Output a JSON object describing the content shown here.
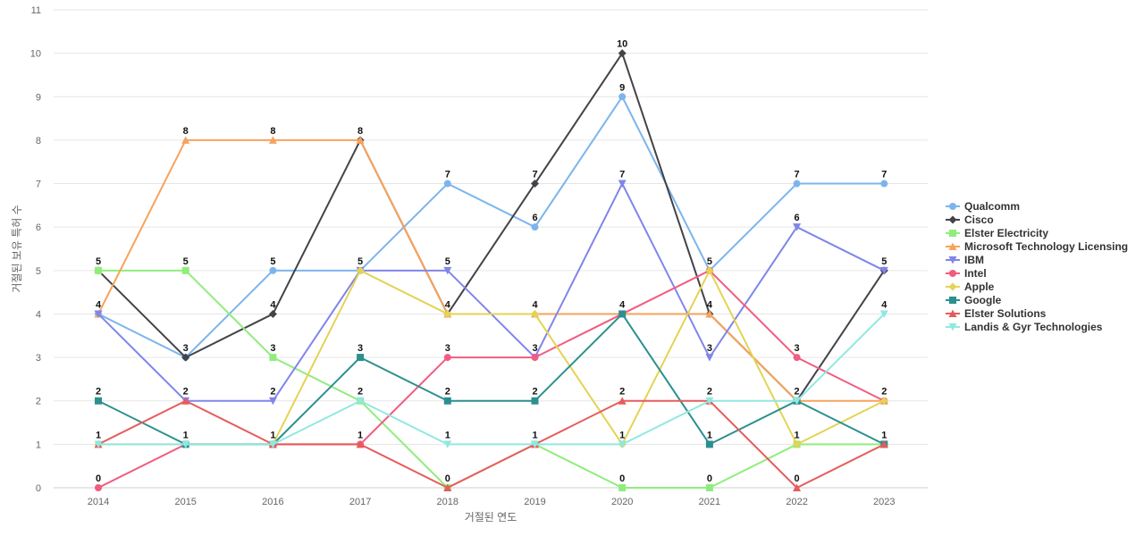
{
  "chart_data": {
    "type": "line",
    "xlabel": "거절된 연도",
    "ylabel": "거절된 보유 특허 수",
    "x": [
      "2014",
      "2015",
      "2016",
      "2017",
      "2018",
      "2019",
      "2020",
      "2021",
      "2022",
      "2023"
    ],
    "ylim": [
      0,
      11
    ],
    "yticks": [
      0,
      1,
      2,
      3,
      4,
      5,
      6,
      7,
      8,
      9,
      10,
      11
    ],
    "grid": true,
    "legend_position": "right",
    "data_labels": true,
    "series": [
      {
        "name": "Qualcomm",
        "color": "#7cb5ec",
        "marker": "circle",
        "values": [
          4,
          3,
          5,
          5,
          7,
          6,
          9,
          5,
          7,
          7
        ]
      },
      {
        "name": "Cisco",
        "color": "#434348",
        "marker": "diamond",
        "values": [
          5,
          3,
          4,
          8,
          4,
          7,
          10,
          4,
          2,
          5
        ]
      },
      {
        "name": "Elster Electricity",
        "color": "#90ed7d",
        "marker": "square",
        "values": [
          5,
          5,
          3,
          2,
          0,
          1,
          0,
          0,
          1,
          1
        ]
      },
      {
        "name": "Microsoft Technology Licensing",
        "color": "#f7a35c",
        "marker": "triangle",
        "values": [
          4,
          8,
          8,
          8,
          4,
          4,
          4,
          4,
          2,
          2
        ]
      },
      {
        "name": "IBM",
        "color": "#8085e9",
        "marker": "triangle-down",
        "values": [
          4,
          2,
          2,
          5,
          5,
          3,
          7,
          3,
          6,
          5
        ]
      },
      {
        "name": "Intel",
        "color": "#f15c80",
        "marker": "circle",
        "values": [
          0,
          1,
          1,
          1,
          3,
          3,
          4,
          5,
          3,
          2
        ]
      },
      {
        "name": "Apple",
        "color": "#e4d354",
        "marker": "diamond",
        "values": [
          1,
          1,
          1,
          5,
          4,
          4,
          1,
          5,
          1,
          2
        ]
      },
      {
        "name": "Google",
        "color": "#2b908f",
        "marker": "square",
        "values": [
          2,
          1,
          1,
          3,
          2,
          2,
          4,
          1,
          2,
          1
        ]
      },
      {
        "name": "Elster Solutions",
        "color": "#e75b5b",
        "marker": "triangle",
        "values": [
          1,
          2,
          1,
          1,
          0,
          1,
          2,
          2,
          0,
          1
        ]
      },
      {
        "name": "Landis & Gyr Technologies",
        "color": "#91e8e1",
        "marker": "triangle-down",
        "values": [
          1,
          1,
          1,
          2,
          1,
          1,
          1,
          2,
          2,
          4
        ]
      }
    ],
    "point_labels": [
      {
        "x": "2014",
        "text": "5",
        "value": 5
      },
      {
        "x": "2014",
        "text": "4",
        "value": 4
      },
      {
        "x": "2014",
        "text": "2",
        "value": 2
      },
      {
        "x": "2014",
        "text": "1",
        "value": 1
      },
      {
        "x": "2014",
        "text": "0",
        "value": 0
      },
      {
        "x": "2015",
        "text": "8",
        "value": 8
      },
      {
        "x": "2015",
        "text": "5",
        "value": 5
      },
      {
        "x": "2015",
        "text": "3",
        "value": 3
      },
      {
        "x": "2015",
        "text": "2",
        "value": 2
      },
      {
        "x": "2015",
        "text": "1",
        "value": 1
      },
      {
        "x": "2016",
        "text": "8",
        "value": 8
      },
      {
        "x": "2016",
        "text": "5",
        "value": 5
      },
      {
        "x": "2016",
        "text": "4",
        "value": 4
      },
      {
        "x": "2016",
        "text": "3",
        "value": 3
      },
      {
        "x": "2016",
        "text": "2",
        "value": 2
      },
      {
        "x": "2016",
        "text": "1",
        "value": 1
      },
      {
        "x": "2017",
        "text": "8",
        "value": 8
      },
      {
        "x": "2017",
        "text": "5",
        "value": 5
      },
      {
        "x": "2017",
        "text": "3",
        "value": 3
      },
      {
        "x": "2017",
        "text": "2",
        "value": 2
      },
      {
        "x": "2017",
        "text": "1",
        "value": 1
      },
      {
        "x": "2018",
        "text": "7",
        "value": 7
      },
      {
        "x": "2018",
        "text": "5",
        "value": 5
      },
      {
        "x": "2018",
        "text": "4",
        "value": 4
      },
      {
        "x": "2018",
        "text": "3",
        "value": 3
      },
      {
        "x": "2018",
        "text": "2",
        "value": 2
      },
      {
        "x": "2018",
        "text": "1",
        "value": 1
      },
      {
        "x": "2018",
        "text": "0",
        "value": 0
      },
      {
        "x": "2019",
        "text": "7",
        "value": 7
      },
      {
        "x": "2019",
        "text": "6",
        "value": 6
      },
      {
        "x": "2019",
        "text": "4",
        "value": 4
      },
      {
        "x": "2019",
        "text": "3",
        "value": 3
      },
      {
        "x": "2019",
        "text": "2",
        "value": 2
      },
      {
        "x": "2019",
        "text": "1",
        "value": 1
      },
      {
        "x": "2020",
        "text": "10",
        "value": 10
      },
      {
        "x": "2020",
        "text": "9",
        "value": 9
      },
      {
        "x": "2020",
        "text": "7",
        "value": 7
      },
      {
        "x": "2020",
        "text": "4",
        "value": 4
      },
      {
        "x": "2020",
        "text": "2",
        "value": 2
      },
      {
        "x": "2020",
        "text": "1",
        "value": 1
      },
      {
        "x": "2020",
        "text": "0",
        "value": 0
      },
      {
        "x": "2021",
        "text": "5",
        "value": 5
      },
      {
        "x": "2021",
        "text": "4",
        "value": 4
      },
      {
        "x": "2021",
        "text": "3",
        "value": 3
      },
      {
        "x": "2021",
        "text": "2",
        "value": 2
      },
      {
        "x": "2021",
        "text": "1",
        "value": 1
      },
      {
        "x": "2021",
        "text": "0",
        "value": 0
      },
      {
        "x": "2022",
        "text": "7",
        "value": 7
      },
      {
        "x": "2022",
        "text": "6",
        "value": 6
      },
      {
        "x": "2022",
        "text": "3",
        "value": 3
      },
      {
        "x": "2022",
        "text": "2",
        "value": 2
      },
      {
        "x": "2022",
        "text": "1",
        "value": 1
      },
      {
        "x": "2022",
        "text": "0",
        "value": 0
      },
      {
        "x": "2023",
        "text": "7",
        "value": 7
      },
      {
        "x": "2023",
        "text": "5",
        "value": 5
      },
      {
        "x": "2023",
        "text": "4",
        "value": 4
      },
      {
        "x": "2023",
        "text": "2",
        "value": 2
      },
      {
        "x": "2023",
        "text": "1",
        "value": 1
      }
    ]
  }
}
